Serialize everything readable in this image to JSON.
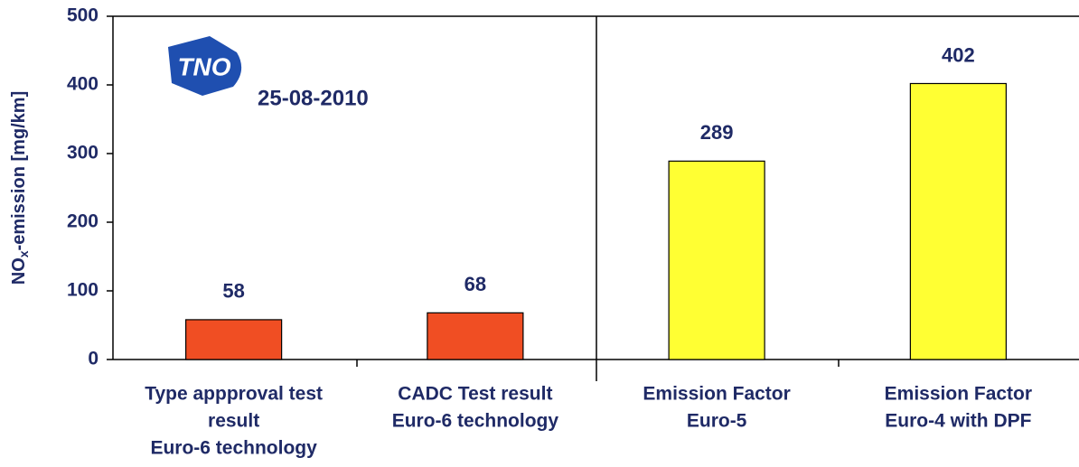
{
  "chart_data": {
    "type": "bar",
    "y_label": {
      "main": "NO",
      "sub": "x",
      "rest": "-emission [mg/km]"
    },
    "annotation": "25-08-2010",
    "logo": "TNO",
    "categories": [
      [
        "Type appproval test",
        "result",
        "Euro-6 technology"
      ],
      [
        "CADC Test result",
        "Euro-6 technology"
      ],
      [
        "Emission Factor",
        "Euro-5"
      ],
      [
        "Emission Factor",
        "Euro-4 with DPF"
      ]
    ],
    "values": [
      58,
      68,
      289,
      402
    ],
    "colors": [
      "#f04e23",
      "#f04e23",
      "#ffff33",
      "#ffff33"
    ],
    "ylim": [
      0,
      500
    ],
    "yticks": [
      0,
      100,
      200,
      300,
      400,
      500
    ]
  }
}
